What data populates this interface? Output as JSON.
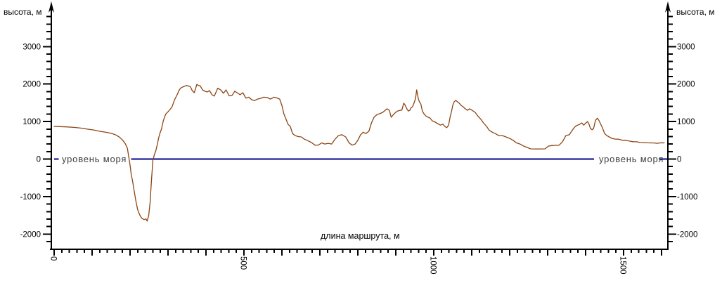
{
  "chart_data": {
    "type": "line",
    "title": "",
    "y_axis_title_left": "высота, м",
    "y_axis_title_right": "высота, м",
    "x_axis_title": "длина маршрута, м",
    "sea_level_label_left": "уровень моря",
    "sea_level_label_right": "уровень моря",
    "sea_level_value": 0,
    "y_tick_labels": [
      "3000",
      "2000",
      "1000",
      "0",
      "-1000",
      "-2000"
    ],
    "y_major_ticks": [
      3000,
      2000,
      1000,
      0,
      -1000,
      -2000
    ],
    "y_minor_step": 200,
    "y_minor_min": -2200,
    "y_minor_max": 3800,
    "x_tick_labels": [
      "0",
      "500",
      "1000",
      "1500"
    ],
    "x_labeled_ticks": [
      0,
      500,
      1000,
      1500
    ],
    "x_major_step": 100,
    "x_major_max": 1600,
    "x_minor_step": 20,
    "x_label_rotation_deg": 90,
    "x_range_m": [
      0,
      1615
    ],
    "y_range_m": [
      -2400,
      4000
    ],
    "grid": false,
    "legend": "none",
    "colors": {
      "background": "#ffffff",
      "axis": "#000000",
      "profile_line": "#8b4513",
      "sea_level_line": "#00008b",
      "sea_level_text": "#3f3f3f"
    },
    "series": [
      {
        "name": "elevation_profile",
        "points": [
          [
            0,
            870
          ],
          [
            15,
            865
          ],
          [
            33,
            858
          ],
          [
            52,
            845
          ],
          [
            70,
            825
          ],
          [
            89,
            795
          ],
          [
            104,
            775
          ],
          [
            117,
            748
          ],
          [
            131,
            722
          ],
          [
            144,
            700
          ],
          [
            154,
            675
          ],
          [
            163,
            640
          ],
          [
            172,
            585
          ],
          [
            180,
            510
          ],
          [
            187,
            415
          ],
          [
            193,
            290
          ],
          [
            196,
            95
          ],
          [
            200,
            -160
          ],
          [
            203,
            -400
          ],
          [
            207,
            -610
          ],
          [
            211,
            -855
          ],
          [
            215,
            -1100
          ],
          [
            220,
            -1350
          ],
          [
            226,
            -1500
          ],
          [
            231,
            -1580
          ],
          [
            237,
            -1615
          ],
          [
            242,
            -1595
          ],
          [
            245,
            -1655
          ],
          [
            249,
            -1510
          ],
          [
            253,
            -1145
          ],
          [
            256,
            -640
          ],
          [
            260,
            -45
          ],
          [
            264,
            120
          ],
          [
            268,
            225
          ],
          [
            272,
            400
          ],
          [
            275,
            550
          ],
          [
            279,
            700
          ],
          [
            283,
            805
          ],
          [
            287,
            1000
          ],
          [
            291,
            1120
          ],
          [
            294,
            1200
          ],
          [
            300,
            1260
          ],
          [
            306,
            1330
          ],
          [
            311,
            1400
          ],
          [
            315,
            1520
          ],
          [
            319,
            1620
          ],
          [
            324,
            1715
          ],
          [
            330,
            1850
          ],
          [
            335,
            1905
          ],
          [
            343,
            1940
          ],
          [
            348,
            1960
          ],
          [
            354,
            1950
          ],
          [
            359,
            1925
          ],
          [
            364,
            1820
          ],
          [
            369,
            1770
          ],
          [
            373,
            1890
          ],
          [
            376,
            1990
          ],
          [
            380,
            1965
          ],
          [
            385,
            1950
          ],
          [
            391,
            1845
          ],
          [
            398,
            1805
          ],
          [
            404,
            1790
          ],
          [
            409,
            1825
          ],
          [
            416,
            1715
          ],
          [
            422,
            1680
          ],
          [
            431,
            1890
          ],
          [
            439,
            1840
          ],
          [
            446,
            1755
          ],
          [
            453,
            1845
          ],
          [
            461,
            1685
          ],
          [
            469,
            1700
          ],
          [
            476,
            1810
          ],
          [
            483,
            1760
          ],
          [
            490,
            1715
          ],
          [
            497,
            1770
          ],
          [
            505,
            1625
          ],
          [
            513,
            1650
          ],
          [
            520,
            1585
          ],
          [
            528,
            1560
          ],
          [
            536,
            1600
          ],
          [
            544,
            1620
          ],
          [
            552,
            1650
          ],
          [
            561,
            1640
          ],
          [
            570,
            1600
          ],
          [
            579,
            1650
          ],
          [
            587,
            1630
          ],
          [
            594,
            1600
          ],
          [
            600,
            1430
          ],
          [
            605,
            1210
          ],
          [
            611,
            1060
          ],
          [
            616,
            930
          ],
          [
            622,
            870
          ],
          [
            628,
            680
          ],
          [
            635,
            625
          ],
          [
            643,
            600
          ],
          [
            651,
            590
          ],
          [
            659,
            530
          ],
          [
            668,
            490
          ],
          [
            678,
            440
          ],
          [
            687,
            370
          ],
          [
            696,
            372
          ],
          [
            705,
            430
          ],
          [
            713,
            400
          ],
          [
            722,
            420
          ],
          [
            731,
            400
          ],
          [
            740,
            530
          ],
          [
            749,
            625
          ],
          [
            758,
            650
          ],
          [
            768,
            590
          ],
          [
            777,
            430
          ],
          [
            785,
            370
          ],
          [
            793,
            400
          ],
          [
            800,
            500
          ],
          [
            807,
            645
          ],
          [
            814,
            715
          ],
          [
            821,
            680
          ],
          [
            829,
            740
          ],
          [
            836,
            965
          ],
          [
            843,
            1120
          ],
          [
            851,
            1190
          ],
          [
            858,
            1210
          ],
          [
            866,
            1248
          ],
          [
            872,
            1300
          ],
          [
            877,
            1340
          ],
          [
            883,
            1300
          ],
          [
            888,
            1115
          ],
          [
            894,
            1190
          ],
          [
            900,
            1250
          ],
          [
            905,
            1280
          ],
          [
            911,
            1300
          ],
          [
            916,
            1305
          ],
          [
            921,
            1490
          ],
          [
            925,
            1430
          ],
          [
            929,
            1340
          ],
          [
            933,
            1280
          ],
          [
            937,
            1300
          ],
          [
            941,
            1375
          ],
          [
            944,
            1395
          ],
          [
            948,
            1490
          ],
          [
            952,
            1620
          ],
          [
            955,
            1845
          ],
          [
            959,
            1620
          ],
          [
            962,
            1530
          ],
          [
            966,
            1470
          ],
          [
            970,
            1280
          ],
          [
            974,
            1210
          ],
          [
            979,
            1150
          ],
          [
            985,
            1115
          ],
          [
            990,
            1095
          ],
          [
            996,
            1020
          ],
          [
            1001,
            1000
          ],
          [
            1007,
            965
          ],
          [
            1013,
            930
          ],
          [
            1018,
            905
          ],
          [
            1024,
            930
          ],
          [
            1029,
            870
          ],
          [
            1034,
            835
          ],
          [
            1039,
            905
          ],
          [
            1043,
            1115
          ],
          [
            1047,
            1280
          ],
          [
            1050,
            1430
          ],
          [
            1054,
            1530
          ],
          [
            1058,
            1565
          ],
          [
            1062,
            1530
          ],
          [
            1067,
            1490
          ],
          [
            1072,
            1430
          ],
          [
            1077,
            1395
          ],
          [
            1083,
            1340
          ],
          [
            1089,
            1300
          ],
          [
            1094,
            1340
          ],
          [
            1101,
            1300
          ],
          [
            1109,
            1245
          ],
          [
            1116,
            1150
          ],
          [
            1124,
            1060
          ],
          [
            1131,
            965
          ],
          [
            1139,
            870
          ],
          [
            1146,
            770
          ],
          [
            1154,
            715
          ],
          [
            1162,
            680
          ],
          [
            1171,
            625
          ],
          [
            1181,
            625
          ],
          [
            1190,
            590
          ],
          [
            1200,
            550
          ],
          [
            1209,
            500
          ],
          [
            1218,
            430
          ],
          [
            1227,
            400
          ],
          [
            1237,
            345
          ],
          [
            1246,
            310
          ],
          [
            1255,
            272
          ],
          [
            1265,
            270
          ],
          [
            1274,
            268
          ],
          [
            1284,
            270
          ],
          [
            1293,
            272
          ],
          [
            1302,
            345
          ],
          [
            1311,
            362
          ],
          [
            1321,
            365
          ],
          [
            1330,
            368
          ],
          [
            1339,
            460
          ],
          [
            1348,
            625
          ],
          [
            1357,
            648
          ],
          [
            1363,
            740
          ],
          [
            1368,
            810
          ],
          [
            1373,
            870
          ],
          [
            1379,
            905
          ],
          [
            1384,
            925
          ],
          [
            1390,
            965
          ],
          [
            1395,
            905
          ],
          [
            1401,
            965
          ],
          [
            1405,
            1000
          ],
          [
            1409,
            925
          ],
          [
            1413,
            810
          ],
          [
            1417,
            782
          ],
          [
            1421,
            810
          ],
          [
            1426,
            1030
          ],
          [
            1431,
            1090
          ],
          [
            1435,
            1030
          ],
          [
            1440,
            925
          ],
          [
            1444,
            840
          ],
          [
            1450,
            680
          ],
          [
            1456,
            625
          ],
          [
            1462,
            590
          ],
          [
            1469,
            552
          ],
          [
            1478,
            532
          ],
          [
            1487,
            530
          ],
          [
            1497,
            502
          ],
          [
            1506,
            500
          ],
          [
            1515,
            480
          ],
          [
            1525,
            462
          ],
          [
            1534,
            460
          ],
          [
            1543,
            442
          ],
          [
            1552,
            440
          ],
          [
            1562,
            432
          ],
          [
            1571,
            430
          ],
          [
            1580,
            428
          ],
          [
            1589,
            420
          ],
          [
            1598,
            432
          ],
          [
            1607,
            430
          ]
        ]
      }
    ]
  }
}
